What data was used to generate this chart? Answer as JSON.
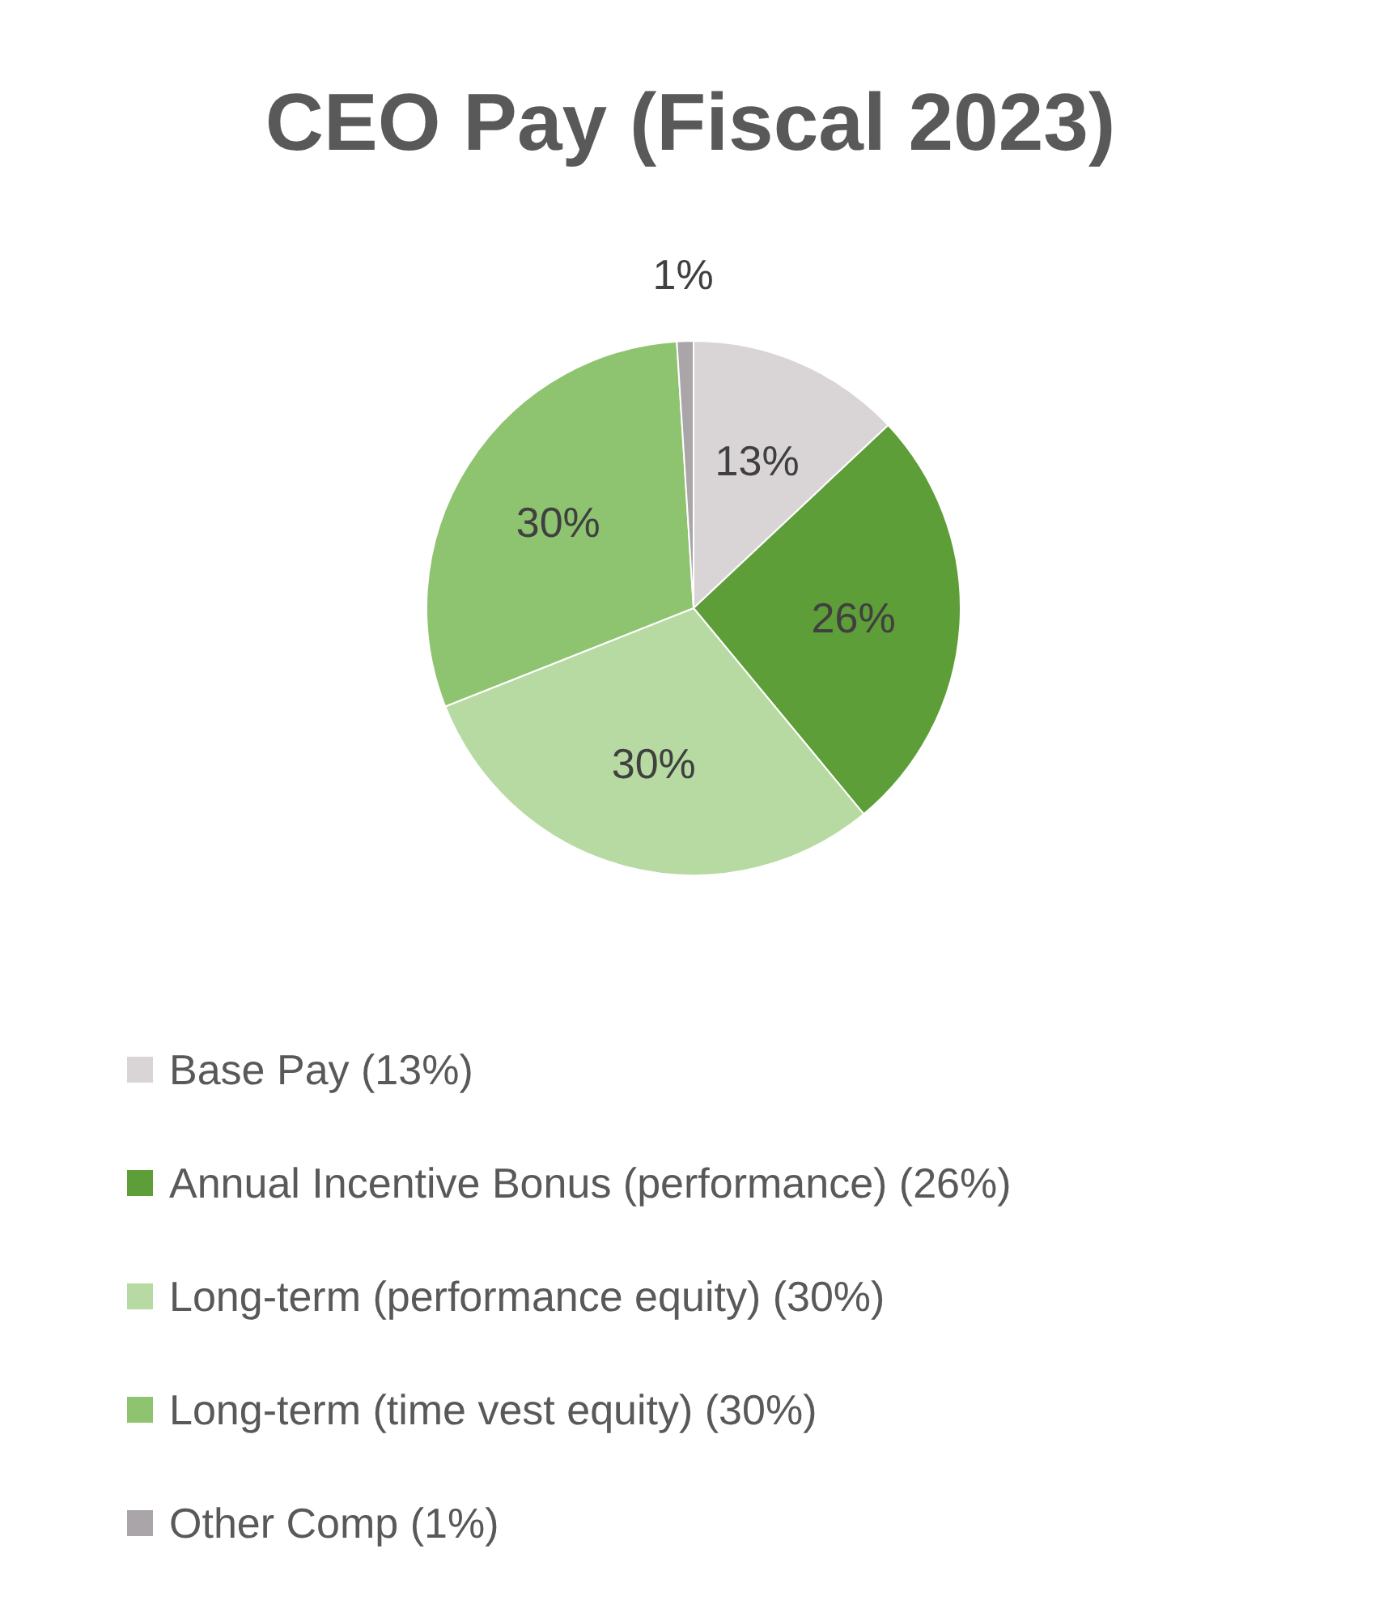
{
  "chart_data": {
    "type": "pie",
    "title": "CEO Pay (Fiscal 2023)",
    "categories": [
      "Base Pay (13%)",
      "Annual Incentive Bonus (performance) (26%)",
      "Long-term (performance equity) (30%)",
      "Long-term (time vest equity) (30%)",
      "Other Comp (1%)"
    ],
    "values": [
      13,
      26,
      30,
      30,
      1
    ],
    "colors": [
      "#d9d5d6",
      "#5e9e38",
      "#b7daa2",
      "#8ec46f",
      "#a9a5a8"
    ],
    "value_labels": [
      "13%",
      "26%",
      "30%",
      "30%",
      "1%"
    ],
    "legend": "bottom"
  }
}
